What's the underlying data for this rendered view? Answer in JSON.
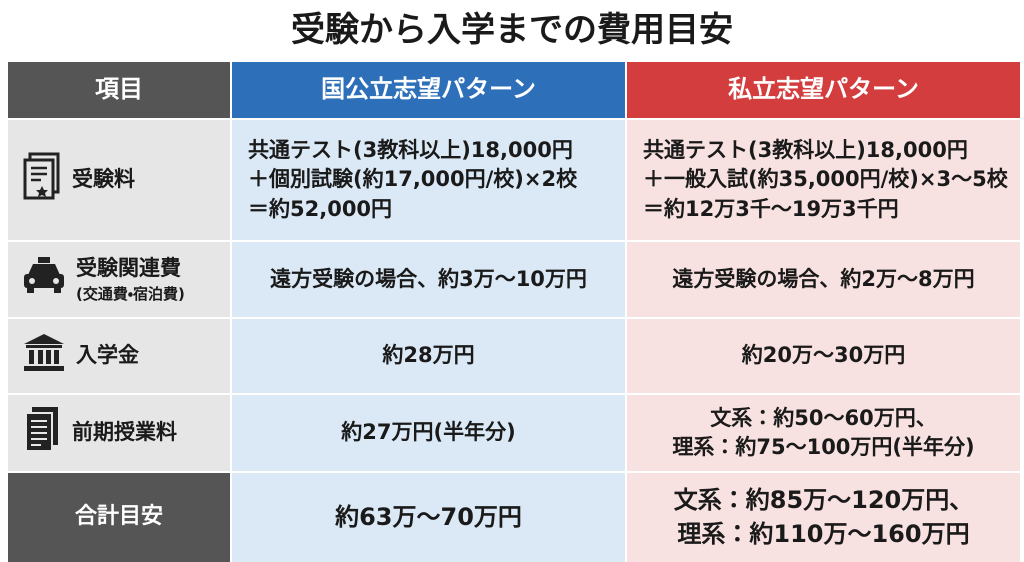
{
  "header": {
    "title": "受験から入学までの費用目安"
  },
  "table": {
    "headers": [
      "項目",
      "国公立志望パターン",
      "私立志望パターン"
    ],
    "rows": [
      {
        "label": "受験料",
        "national": [
          "共通テスト(3教科以上)18,000円",
          "＋個別試験(約17,000円/校)×2校",
          "＝約52,000円"
        ],
        "private": [
          "共通テスト(3教科以上)18,000円",
          "＋一般入試(約35,000円/校)×3～5校",
          "＝約12万3千～19万3千円"
        ]
      },
      {
        "label": "受験関連費",
        "note": "(交通費・宿泊費)",
        "national": [
          "遠方受験の場合、約3万～10万円"
        ],
        "private": [
          "遠方受験の場合、約2万～8万円"
        ]
      },
      {
        "label": "入学金",
        "national": [
          "約28万円"
        ],
        "private": [
          "約20万～30万円"
        ]
      },
      {
        "label": "前期授業料",
        "national": [
          "約27万円(半年分)"
        ],
        "private": [
          "文系：約50～60万円、",
          "理系：約75～100万円(半年分)"
        ]
      },
      {
        "label": "合計目安",
        "national": [
          "約63万～70万円"
        ],
        "private": [
          "文系：約85万～120万円、",
          "理系：約110万～160万円"
        ]
      }
    ]
  }
}
